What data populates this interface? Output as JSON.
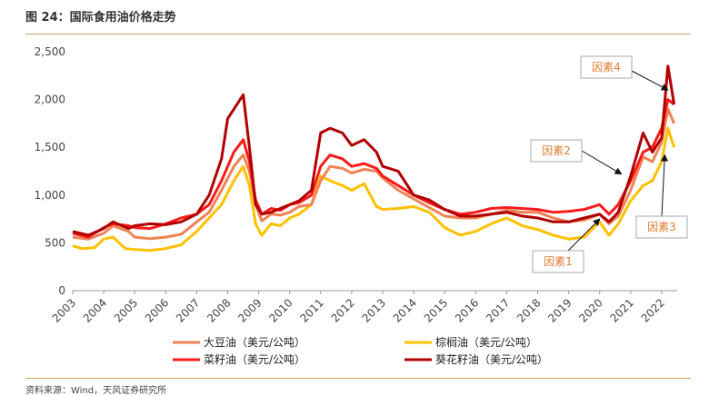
{
  "figure": {
    "title": "图 24：国际食用油价格走势",
    "source": "资料来源：Wind，天风证券研究所"
  },
  "colors": {
    "soybean": "#f08254",
    "palm": "#ffc000",
    "rapeseed": "#ff1a1a",
    "sunflower": "#b10000",
    "rule": "#c9a063",
    "factor_text": "#e07a30"
  },
  "chart_data": {
    "type": "line",
    "title": "",
    "xlabel": "",
    "ylabel": "",
    "ylim": [
      0,
      2500
    ],
    "xlim": [
      2003,
      2022.5
    ],
    "yticks": [
      "0",
      "500",
      "1,000",
      "1,500",
      "2,000",
      "2,500"
    ],
    "ytick_values": [
      0,
      500,
      1000,
      1500,
      2000,
      2500
    ],
    "xticks": [
      "2003",
      "2004",
      "2005",
      "2006",
      "2007",
      "2008",
      "2009",
      "2010",
      "2011",
      "2012",
      "2013",
      "2014",
      "2015",
      "2016",
      "2017",
      "2018",
      "2019",
      "2020",
      "2021",
      "2022"
    ],
    "grid": false,
    "legend_position": "bottom",
    "series": [
      {
        "name": "大豆油（美元/公吨）",
        "key": "soybean",
        "points": [
          [
            2003.0,
            560
          ],
          [
            2003.5,
            540
          ],
          [
            2004.0,
            600
          ],
          [
            2004.3,
            680
          ],
          [
            2004.8,
            620
          ],
          [
            2005.0,
            560
          ],
          [
            2005.5,
            545
          ],
          [
            2006.0,
            560
          ],
          [
            2006.5,
            590
          ],
          [
            2007.0,
            720
          ],
          [
            2007.4,
            820
          ],
          [
            2007.8,
            1050
          ],
          [
            2008.2,
            1300
          ],
          [
            2008.5,
            1420
          ],
          [
            2008.7,
            1250
          ],
          [
            2008.9,
            900
          ],
          [
            2009.1,
            730
          ],
          [
            2009.4,
            800
          ],
          [
            2009.7,
            790
          ],
          [
            2010.0,
            820
          ],
          [
            2010.3,
            880
          ],
          [
            2010.7,
            900
          ],
          [
            2011.0,
            1150
          ],
          [
            2011.3,
            1300
          ],
          [
            2011.7,
            1280
          ],
          [
            2012.0,
            1230
          ],
          [
            2012.4,
            1270
          ],
          [
            2012.8,
            1250
          ],
          [
            2013.0,
            1180
          ],
          [
            2013.5,
            1050
          ],
          [
            2014.0,
            960
          ],
          [
            2014.5,
            870
          ],
          [
            2015.0,
            780
          ],
          [
            2015.5,
            760
          ],
          [
            2016.0,
            760
          ],
          [
            2016.5,
            800
          ],
          [
            2017.0,
            840
          ],
          [
            2017.5,
            820
          ],
          [
            2018.0,
            820
          ],
          [
            2018.5,
            760
          ],
          [
            2019.0,
            720
          ],
          [
            2019.5,
            740
          ],
          [
            2020.0,
            800
          ],
          [
            2020.3,
            700
          ],
          [
            2020.6,
            780
          ],
          [
            2021.0,
            1050
          ],
          [
            2021.4,
            1400
          ],
          [
            2021.7,
            1350
          ],
          [
            2022.0,
            1550
          ],
          [
            2022.2,
            1900
          ],
          [
            2022.4,
            1750
          ]
        ]
      },
      {
        "name": "棕榈油（美元/公吨）",
        "key": "palm",
        "points": [
          [
            2003.0,
            470
          ],
          [
            2003.3,
            440
          ],
          [
            2003.7,
            450
          ],
          [
            2004.0,
            540
          ],
          [
            2004.3,
            560
          ],
          [
            2004.7,
            440
          ],
          [
            2005.0,
            430
          ],
          [
            2005.5,
            420
          ],
          [
            2006.0,
            440
          ],
          [
            2006.5,
            480
          ],
          [
            2007.0,
            620
          ],
          [
            2007.4,
            760
          ],
          [
            2007.8,
            900
          ],
          [
            2008.2,
            1150
          ],
          [
            2008.5,
            1300
          ],
          [
            2008.7,
            1100
          ],
          [
            2008.9,
            700
          ],
          [
            2009.1,
            580
          ],
          [
            2009.4,
            700
          ],
          [
            2009.7,
            680
          ],
          [
            2010.0,
            760
          ],
          [
            2010.3,
            800
          ],
          [
            2010.7,
            900
          ],
          [
            2011.0,
            1200
          ],
          [
            2011.3,
            1150
          ],
          [
            2011.7,
            1100
          ],
          [
            2012.0,
            1050
          ],
          [
            2012.4,
            1120
          ],
          [
            2012.8,
            880
          ],
          [
            2013.0,
            850
          ],
          [
            2013.5,
            860
          ],
          [
            2014.0,
            880
          ],
          [
            2014.5,
            820
          ],
          [
            2015.0,
            660
          ],
          [
            2015.5,
            580
          ],
          [
            2016.0,
            620
          ],
          [
            2016.5,
            700
          ],
          [
            2017.0,
            760
          ],
          [
            2017.5,
            680
          ],
          [
            2018.0,
            640
          ],
          [
            2018.5,
            580
          ],
          [
            2019.0,
            540
          ],
          [
            2019.5,
            560
          ],
          [
            2020.0,
            720
          ],
          [
            2020.3,
            580
          ],
          [
            2020.6,
            700
          ],
          [
            2021.0,
            940
          ],
          [
            2021.4,
            1100
          ],
          [
            2021.7,
            1150
          ],
          [
            2022.0,
            1350
          ],
          [
            2022.2,
            1700
          ],
          [
            2022.4,
            1500
          ]
        ]
      },
      {
        "name": "菜籽油（美元/公吨）",
        "key": "rapeseed",
        "points": [
          [
            2003.0,
            600
          ],
          [
            2003.5,
            560
          ],
          [
            2004.0,
            660
          ],
          [
            2004.3,
            700
          ],
          [
            2004.8,
            680
          ],
          [
            2005.0,
            660
          ],
          [
            2005.5,
            650
          ],
          [
            2006.0,
            700
          ],
          [
            2006.5,
            760
          ],
          [
            2007.0,
            800
          ],
          [
            2007.4,
            900
          ],
          [
            2007.8,
            1150
          ],
          [
            2008.2,
            1450
          ],
          [
            2008.5,
            1580
          ],
          [
            2008.7,
            1350
          ],
          [
            2008.9,
            950
          ],
          [
            2009.1,
            800
          ],
          [
            2009.4,
            860
          ],
          [
            2009.7,
            840
          ],
          [
            2010.0,
            900
          ],
          [
            2010.3,
            920
          ],
          [
            2010.7,
            1000
          ],
          [
            2011.0,
            1300
          ],
          [
            2011.3,
            1420
          ],
          [
            2011.7,
            1380
          ],
          [
            2012.0,
            1300
          ],
          [
            2012.4,
            1330
          ],
          [
            2012.8,
            1280
          ],
          [
            2013.0,
            1200
          ],
          [
            2013.5,
            1100
          ],
          [
            2014.0,
            1000
          ],
          [
            2014.5,
            920
          ],
          [
            2015.0,
            850
          ],
          [
            2015.5,
            800
          ],
          [
            2016.0,
            820
          ],
          [
            2016.5,
            860
          ],
          [
            2017.0,
            870
          ],
          [
            2017.5,
            860
          ],
          [
            2018.0,
            850
          ],
          [
            2018.5,
            820
          ],
          [
            2019.0,
            830
          ],
          [
            2019.5,
            850
          ],
          [
            2020.0,
            900
          ],
          [
            2020.3,
            800
          ],
          [
            2020.6,
            900
          ],
          [
            2021.0,
            1150
          ],
          [
            2021.4,
            1450
          ],
          [
            2021.7,
            1500
          ],
          [
            2022.0,
            1700
          ],
          [
            2022.2,
            2000
          ],
          [
            2022.4,
            1950
          ]
        ]
      },
      {
        "name": "葵花籽油（美元/公吨）",
        "key": "sunflower",
        "points": [
          [
            2003.0,
            620
          ],
          [
            2003.5,
            580
          ],
          [
            2004.0,
            650
          ],
          [
            2004.3,
            720
          ],
          [
            2004.8,
            650
          ],
          [
            2005.0,
            680
          ],
          [
            2005.5,
            700
          ],
          [
            2006.0,
            690
          ],
          [
            2006.5,
            720
          ],
          [
            2007.0,
            800
          ],
          [
            2007.4,
            1000
          ],
          [
            2007.8,
            1380
          ],
          [
            2008.0,
            1800
          ],
          [
            2008.3,
            1950
          ],
          [
            2008.5,
            2050
          ],
          [
            2008.7,
            1500
          ],
          [
            2008.9,
            900
          ],
          [
            2009.1,
            800
          ],
          [
            2009.4,
            820
          ],
          [
            2009.7,
            860
          ],
          [
            2010.0,
            900
          ],
          [
            2010.3,
            940
          ],
          [
            2010.7,
            1050
          ],
          [
            2011.0,
            1650
          ],
          [
            2011.3,
            1700
          ],
          [
            2011.7,
            1650
          ],
          [
            2012.0,
            1520
          ],
          [
            2012.4,
            1580
          ],
          [
            2012.8,
            1450
          ],
          [
            2013.0,
            1300
          ],
          [
            2013.5,
            1250
          ],
          [
            2014.0,
            1000
          ],
          [
            2014.5,
            950
          ],
          [
            2015.0,
            850
          ],
          [
            2015.5,
            780
          ],
          [
            2016.0,
            780
          ],
          [
            2016.5,
            800
          ],
          [
            2017.0,
            820
          ],
          [
            2017.5,
            780
          ],
          [
            2018.0,
            760
          ],
          [
            2018.5,
            720
          ],
          [
            2019.0,
            720
          ],
          [
            2019.5,
            760
          ],
          [
            2020.0,
            800
          ],
          [
            2020.3,
            720
          ],
          [
            2020.6,
            820
          ],
          [
            2021.0,
            1200
          ],
          [
            2021.4,
            1650
          ],
          [
            2021.7,
            1450
          ],
          [
            2022.0,
            1600
          ],
          [
            2022.2,
            2350
          ],
          [
            2022.4,
            1950
          ]
        ]
      }
    ],
    "annotations": [
      {
        "key": "f1",
        "text": "因素1",
        "target_x": 2020.0,
        "target_y": 750
      },
      {
        "key": "f2",
        "text": "因素2",
        "target_x": 2020.7,
        "target_y": 1220
      },
      {
        "key": "f3",
        "text": "因素3",
        "target_x": 2022.1,
        "target_y": 1420
      },
      {
        "key": "f4",
        "text": "因素4",
        "target_x": 2022.2,
        "target_y": 2100
      }
    ]
  }
}
